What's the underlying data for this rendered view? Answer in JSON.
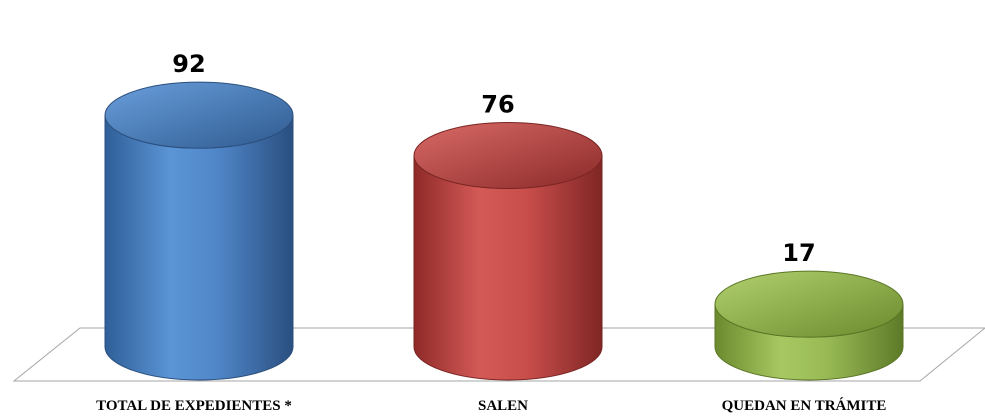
{
  "chart_data": {
    "type": "bar",
    "categories": [
      "TOTAL DE EXPEDIENTES *",
      "SALEN",
      "QUEDAN EN TRÁMITE"
    ],
    "values": [
      92,
      76,
      17
    ],
    "value_labels": [
      "92",
      "76",
      "17"
    ],
    "bar_colors": [
      "#4f81bd",
      "#c0504d",
      "#9bbb59"
    ],
    "bar_shape": "cylinder",
    "ylim": [
      0,
      100
    ],
    "grid": false,
    "legend": "none"
  }
}
